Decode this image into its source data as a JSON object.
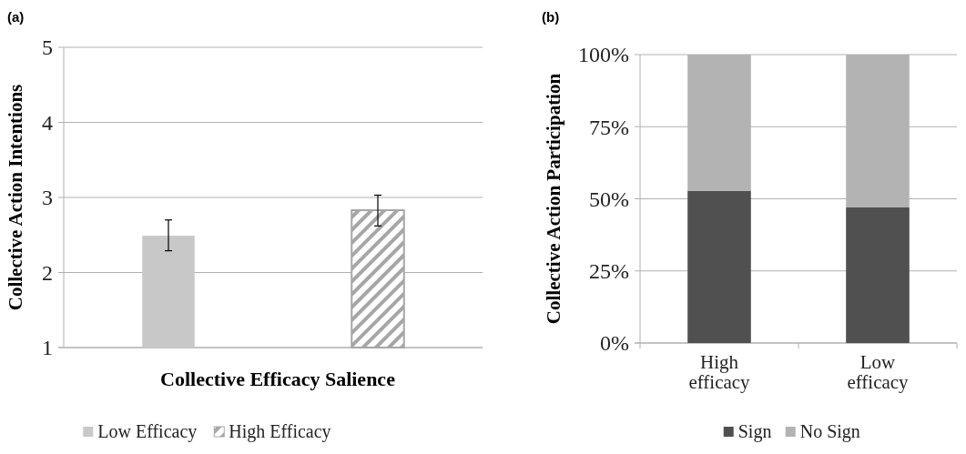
{
  "chart_data": [
    {
      "type": "bar",
      "title": "(a)",
      "xlabel": "Collective Efficacy Salience",
      "ylabel": "Collective Action Intentions",
      "categories": [
        null
      ],
      "series": [
        {
          "name": "Low Efficacy",
          "color": "#c8c8c8",
          "values": [
            2.49
          ],
          "errors": [
            [
              2.29,
              2.7
            ]
          ]
        },
        {
          "name": "High Efficacy",
          "color": "#a6a6a6",
          "values": [
            2.83
          ],
          "errors": [
            [
              2.62,
              3.03
            ]
          ]
        }
      ],
      "ylim": [
        1,
        5
      ],
      "yticks": [
        1,
        2,
        3,
        4,
        5
      ],
      "grid": "y",
      "legend": "bottom"
    },
    {
      "type": "bar",
      "title": "(b)",
      "ylabel": "Collective Action Participation",
      "categories": [
        "High efficacy",
        "Low efficacy"
      ],
      "stacked": true,
      "series": [
        {
          "name": "Sign",
          "color": "#505050",
          "values": [
            52.8,
            47.0
          ]
        },
        {
          "name": "No Sign",
          "color": "#b3b3b3",
          "values": [
            47.2,
            53.0
          ]
        }
      ],
      "ylim": [
        0,
        100
      ],
      "yticks": [
        {
          "value": 0,
          "label": "0%"
        },
        {
          "value": 25,
          "label": "25%"
        },
        {
          "value": 50,
          "label": "50%"
        },
        {
          "value": 75,
          "label": "75%"
        },
        {
          "value": 100,
          "label": "100%"
        }
      ],
      "grid": "y",
      "legend": "bottom"
    }
  ]
}
